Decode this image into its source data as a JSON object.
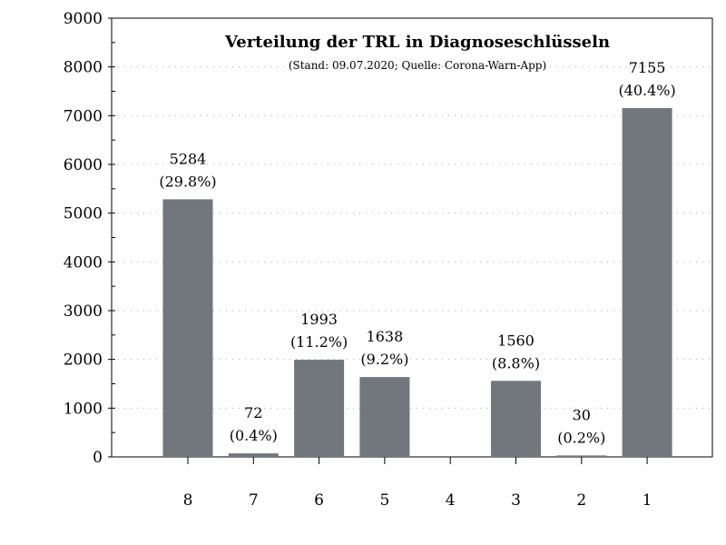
{
  "chart_data": {
    "type": "bar",
    "title": "Verteilung der TRL in Diagnoseschlüsseln",
    "subtitle": "(Stand: 09.07.2020; Quelle: Corona-Warn-App)",
    "categories": [
      "8",
      "7",
      "6",
      "5",
      "4",
      "3",
      "2",
      "1"
    ],
    "values": [
      5284,
      72,
      1993,
      1638,
      0,
      1560,
      30,
      7155
    ],
    "percent_labels": [
      "(29.8%)",
      "(0.4%)",
      "(11.2%)",
      "(9.2%)",
      "",
      "(8.8%)",
      "(0.2%)",
      "(40.4%)"
    ],
    "value_labels": [
      "5284",
      "72",
      "1993",
      "1638",
      "",
      "1560",
      "30",
      "7155"
    ],
    "xlabel": "",
    "ylabel": "",
    "ylim": [
      0,
      9000
    ],
    "yticks": [
      0,
      1000,
      2000,
      3000,
      4000,
      5000,
      6000,
      7000,
      8000,
      9000
    ],
    "grid": true,
    "bar_color": "#72767d"
  }
}
